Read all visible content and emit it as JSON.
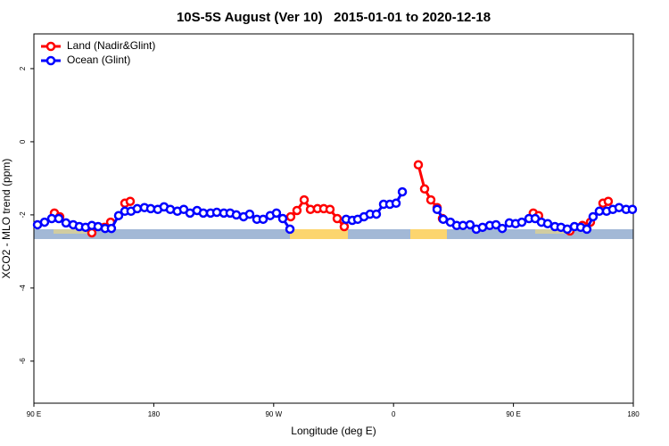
{
  "chart_data": {
    "type": "line",
    "title": "10S-5S August (Ver 10)   2015-01-01 to 2020-12-18",
    "x_label": "Longitude (deg E)",
    "y_label": "XCO2 - MLO trend (ppm)",
    "xlim": [
      90,
      540
    ],
    "ylim": [
      -7.15,
      2.95
    ],
    "xticks": [
      {
        "value": 90,
        "label": "90 E"
      },
      180,
      {
        "value": 270,
        "label": "90 W"
      },
      {
        "value": 360,
        "label": "0"
      },
      {
        "value": 450,
        "label": "90 E"
      },
      {
        "value": 540,
        "label": "180"
      }
    ],
    "yticks": [
      2,
      0,
      -2,
      -4,
      -6
    ],
    "legend": "top-left",
    "series": [
      {
        "name": "Land (Nadir&Glint)",
        "color": "#ff0000",
        "x": [
          105.4,
          109.4,
          null,
          133.5,
          null,
          142.9,
          147.6,
          null,
          158.3,
          162.3,
          null,
          282.8,
          287.5,
          292.9,
          297.6,
          302.9,
          307.6,
          312.3,
          317.7,
          323.0,
          null,
          378.6,
          383.3,
          388.0,
          392.7,
          396.7,
          null,
          464.9,
          468.9,
          null,
          492.4,
          null,
          501.8,
          507.8,
          null,
          517.2,
          521.2
        ],
        "values": [
          -1.95,
          -2.05,
          null,
          -2.49,
          null,
          -2.34,
          -2.2,
          null,
          -1.68,
          -1.63,
          null,
          -2.05,
          -1.88,
          -1.59,
          -1.85,
          -1.83,
          -1.83,
          -1.85,
          -2.1,
          -2.32,
          null,
          -0.63,
          -1.29,
          -1.59,
          -1.8,
          -2.1,
          null,
          -1.95,
          -2.02,
          null,
          -2.44,
          null,
          -2.29,
          -2.2,
          null,
          -1.68,
          -1.63
        ]
      },
      {
        "name": "Ocean (Glint)",
        "color": "#0000ff",
        "x": [
          92.7,
          98.0,
          103.4,
          108.7,
          114.1,
          119.5,
          124.1,
          128.8,
          133.5,
          138.2,
          143.5,
          148.2,
          153.6,
          158.3,
          162.9,
          167.6,
          173.0,
          177.7,
          183.0,
          187.7,
          192.4,
          197.7,
          202.5,
          207.2,
          212.5,
          217.2,
          222.6,
          227.3,
          232.6,
          237.3,
          242.0,
          247.4,
          252.0,
          257.4,
          262.1,
          267.4,
          272.1,
          276.8,
          282.2,
          null,
          324.4,
          329.0,
          333.1,
          337.8,
          342.4,
          347.1,
          352.5,
          357.2,
          361.9,
          366.6,
          null,
          392.7,
          397.3,
          402.7,
          407.4,
          412.1,
          417.4,
          422.1,
          426.8,
          432.2,
          436.9,
          441.6,
          446.9,
          451.6,
          456.3,
          461.7,
          466.3,
          471.0,
          475.7,
          481.1,
          485.7,
          490.4,
          495.8,
          500.5,
          505.1,
          509.8,
          514.5,
          519.9,
          524.6,
          529.3,
          534.6,
          539.3
        ],
        "values": [
          -2.27,
          -2.2,
          -2.1,
          -2.1,
          -2.22,
          -2.27,
          -2.32,
          -2.34,
          -2.29,
          -2.32,
          -2.37,
          -2.37,
          -2.02,
          -1.9,
          -1.9,
          -1.83,
          -1.8,
          -1.83,
          -1.85,
          -1.78,
          -1.85,
          -1.9,
          -1.85,
          -1.95,
          -1.88,
          -1.95,
          -1.95,
          -1.93,
          -1.95,
          -1.95,
          -2.0,
          -2.05,
          -1.98,
          -2.12,
          -2.12,
          -2.02,
          -1.95,
          -2.1,
          -2.39,
          null,
          -2.12,
          -2.15,
          -2.12,
          -2.05,
          -1.98,
          -1.98,
          -1.71,
          -1.71,
          -1.68,
          -1.37,
          null,
          -1.85,
          -2.12,
          -2.2,
          -2.29,
          -2.29,
          -2.27,
          -2.39,
          -2.34,
          -2.29,
          -2.27,
          -2.37,
          -2.22,
          -2.24,
          -2.2,
          -2.1,
          -2.1,
          -2.2,
          -2.24,
          -2.32,
          -2.34,
          -2.39,
          -2.32,
          -2.34,
          -2.39,
          -2.05,
          -1.9,
          -1.9,
          -1.85,
          -1.8,
          -1.85,
          -1.85
        ]
      }
    ]
  }
}
